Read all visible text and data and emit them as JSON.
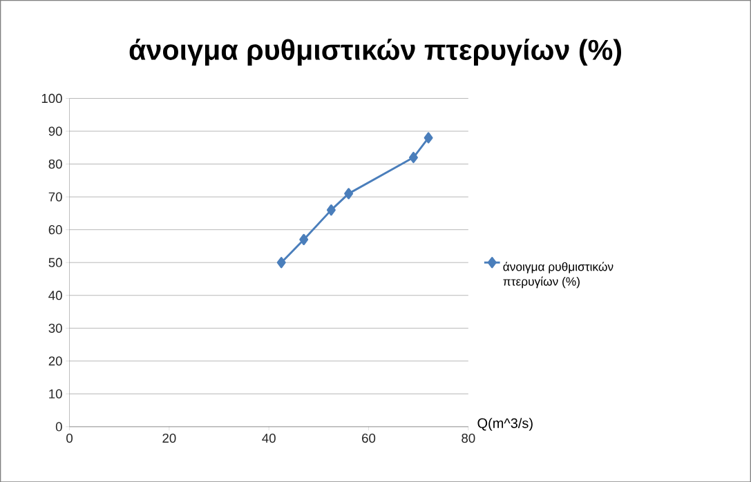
{
  "chart_data": {
    "type": "line",
    "title": "άνοιγμα ρυθμιστικών πτερυγίων (%)",
    "xlabel": "Q(m^3/s)",
    "x": [
      42.5,
      47,
      52.5,
      56,
      69,
      72
    ],
    "series": [
      {
        "name": "άνοιγμα ρυθμιστικών πτερυγίων (%)",
        "color": "#4a7ebb",
        "values": [
          50,
          57,
          66,
          71,
          82,
          88
        ]
      }
    ],
    "xlim": [
      0,
      80
    ],
    "xticks": [
      0,
      20,
      40,
      60,
      80
    ],
    "ylim": [
      0,
      100
    ],
    "yticks": [
      0,
      10,
      20,
      30,
      40,
      50,
      60,
      70,
      80,
      90,
      100
    ],
    "grid": "y",
    "legend": "right",
    "marker": "diamond",
    "line_style": "solid"
  }
}
